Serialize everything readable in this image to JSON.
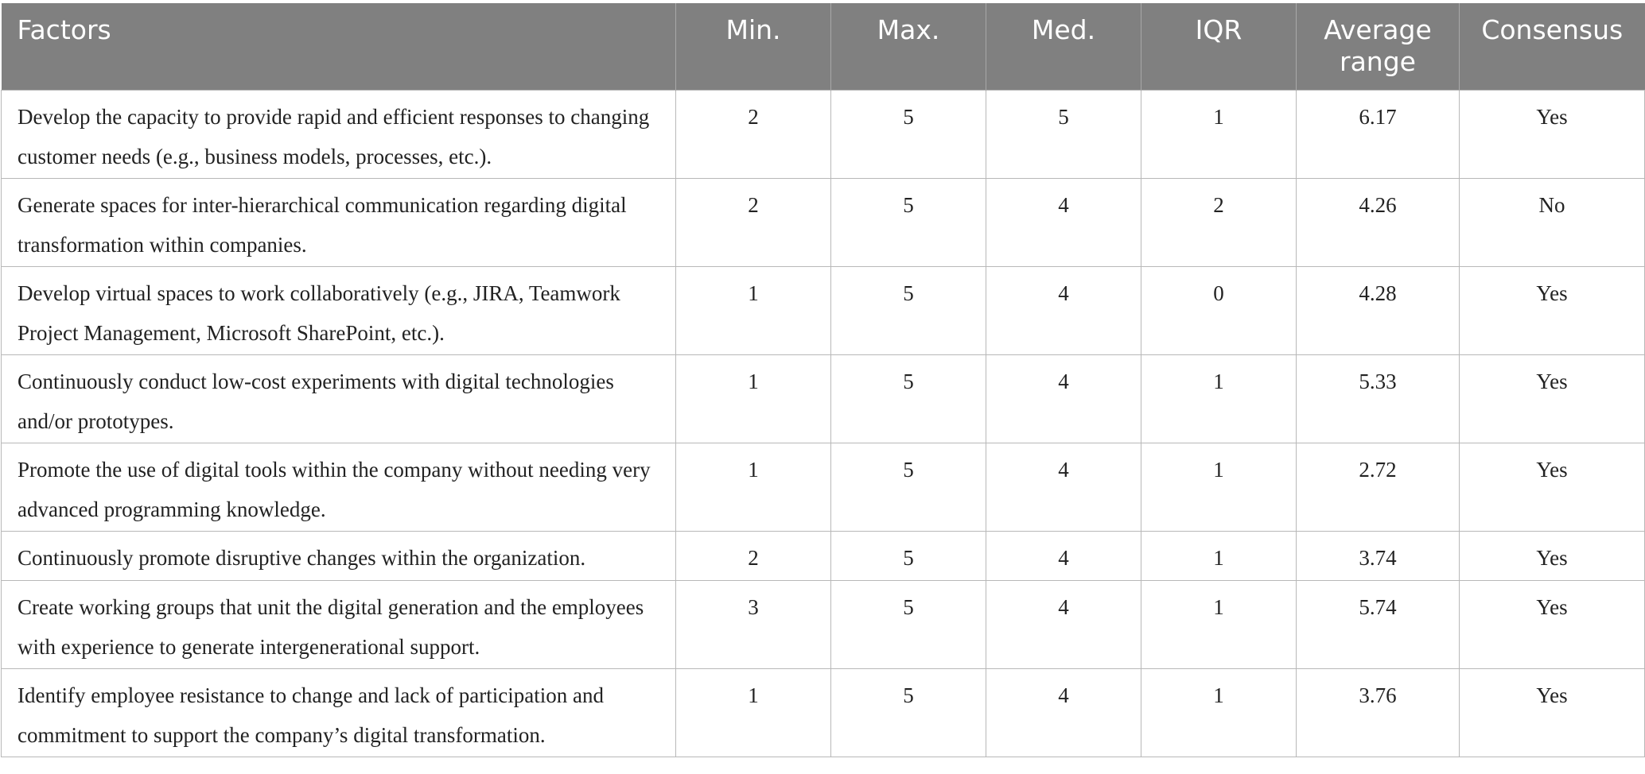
{
  "headers": [
    "Factors",
    "Min.",
    "Max.",
    "Med.",
    "IQR",
    "Average range",
    "Consensus"
  ],
  "rows": [
    {
      "factor": "Develop the capacity to provide rapid and efficient responses to changing customer needs (e.g., business models, processes, etc.).",
      "min": "2",
      "max": "5",
      "med": "5",
      "iqr": "1",
      "avg": "6.17",
      "consensus": "Yes"
    },
    {
      "factor": "Generate spaces for inter-hierarchical communication regarding digital transformation within companies.",
      "min": "2",
      "max": "5",
      "med": "4",
      "iqr": "2",
      "avg": "4.26",
      "consensus": "No"
    },
    {
      "factor": "Develop virtual spaces to work collaboratively (e.g., JIRA, Teamwork Project Management, Microsoft SharePoint, etc.).",
      "min": "1",
      "max": "5",
      "med": "4",
      "iqr": "0",
      "avg": "4.28",
      "consensus": "Yes"
    },
    {
      "factor": "Continuously conduct low-cost experiments with digital technologies and/or prototypes.",
      "min": "1",
      "max": "5",
      "med": "4",
      "iqr": "1",
      "avg": "5.33",
      "consensus": "Yes"
    },
    {
      "factor": "Promote the use of digital tools within the company without needing very advanced programming knowledge.",
      "min": "1",
      "max": "5",
      "med": "4",
      "iqr": "1",
      "avg": "2.72",
      "consensus": "Yes"
    },
    {
      "factor": "Continuously promote disruptive changes within the organization.",
      "min": "2",
      "max": "5",
      "med": "4",
      "iqr": "1",
      "avg": "3.74",
      "consensus": "Yes"
    },
    {
      "factor": "Create working groups that unit the digital generation and the employees with experience to generate intergenerational support.",
      "min": "3",
      "max": "5",
      "med": "4",
      "iqr": "1",
      "avg": "5.74",
      "consensus": "Yes"
    },
    {
      "factor": "Identify employee resistance to change and lack of participation and commitment to support the company’s digital transformation.",
      "min": "1",
      "max": "5",
      "med": "4",
      "iqr": "1",
      "avg": "3.76",
      "consensus": "Yes"
    }
  ]
}
